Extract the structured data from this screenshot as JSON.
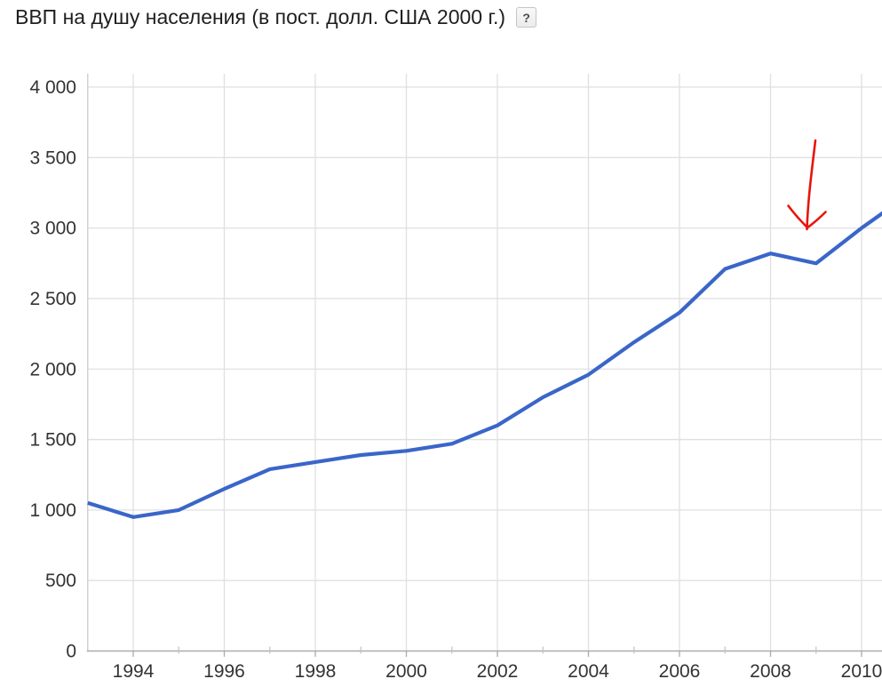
{
  "header": {
    "help_label": "?"
  },
  "toolbar": {
    "buttons": [
      {
        "icon": "line-chart-icon",
        "selected": true
      },
      {
        "icon": "bar-chart-icon",
        "selected": false
      },
      {
        "icon": "partial-cutoff-button",
        "selected": false
      }
    ]
  },
  "colors": {
    "series": "#3a66c8",
    "grid": "#e0e0e0",
    "axis_left": "#cccccc",
    "axis_bottom": "#ababab",
    "minor_tick": "#c6c6c6",
    "tick_text": "#333333",
    "annotation_arrow": "#e8150b"
  },
  "chart_data": {
    "type": "line",
    "title": "ВВП на душу населения (в пост. долл. США 2000 г.)",
    "xlabel": "",
    "ylabel": "",
    "ylim": [
      0,
      4000
    ],
    "ytick_step": 500,
    "ytick_labels": [
      "4 000",
      "3 500",
      "3 000",
      "2 500",
      "2 000",
      "1 500",
      "1 000",
      "500",
      "0"
    ],
    "xtick_labels": [
      "1994",
      "1996",
      "1998",
      "2000",
      "2002",
      "2004",
      "2006",
      "2008",
      "2010"
    ],
    "grid": true,
    "legend": "none",
    "x": [
      1993,
      1994,
      1995,
      1996,
      1997,
      1998,
      1999,
      2000,
      2001,
      2002,
      2003,
      2004,
      2005,
      2006,
      2007,
      2008,
      2009,
      2010
    ],
    "values": [
      1050,
      950,
      1000,
      1150,
      1290,
      1340,
      1390,
      1420,
      1470,
      1600,
      1800,
      1960,
      2190,
      2400,
      2710,
      2820,
      2750,
      3000
    ],
    "clipped_continuation": {
      "year": 2011,
      "approx_value": 3230,
      "note": "line keeps rising and exits the right edge of the viewport"
    },
    "annotation": {
      "type": "hand-drawn red arrow",
      "points_at_year": 2009,
      "direction": "down"
    }
  }
}
